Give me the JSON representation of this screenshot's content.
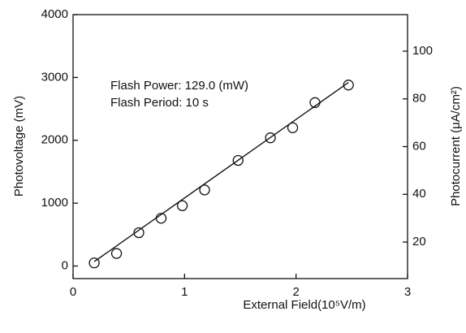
{
  "chart_data": {
    "type": "scatter",
    "x_label": "External Field(10⁵V/m)",
    "y_label": "Photovoltage (mV)",
    "y2_label": "Photocurrent (μA/cm²)",
    "annotations": [
      "Flash Power: 129.0 (mW)",
      "Flash Period: 10 s"
    ],
    "x": [
      0.19,
      0.39,
      0.59,
      0.79,
      0.98,
      1.18,
      1.48,
      1.77,
      1.97,
      2.17,
      2.47
    ],
    "values": [
      50,
      200,
      530,
      760,
      960,
      1210,
      1680,
      2040,
      2200,
      2600,
      2880
    ],
    "fit": {
      "x": [
        0.19,
        2.47
      ],
      "y": [
        70,
        2920
      ]
    },
    "xlim": [
      0,
      3
    ],
    "xticks": [
      0,
      1,
      2,
      3
    ],
    "ylim": [
      -200,
      4000
    ],
    "yticks": [
      0,
      1000,
      2000,
      3000,
      4000
    ],
    "y2lim": [
      4.7,
      115.3
    ],
    "y2ticks": [
      20,
      40,
      60,
      80,
      100
    ]
  }
}
